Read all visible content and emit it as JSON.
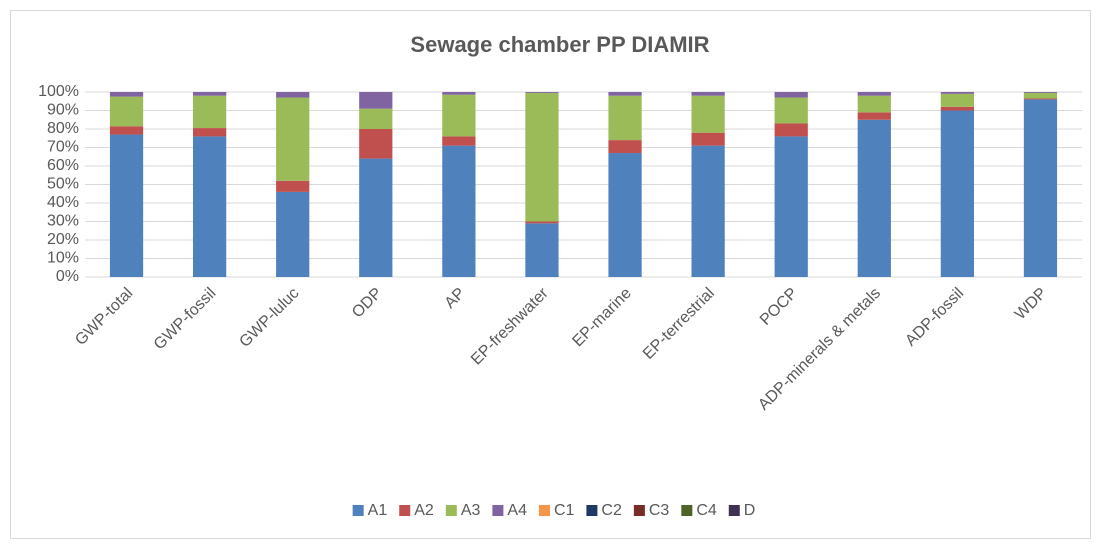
{
  "chart_data": {
    "type": "bar",
    "stacked": true,
    "title": "Sewage chamber PP DIAMIR",
    "categories": [
      "GWP-total",
      "GWP-fossil",
      "GWP-luluc",
      "ODP",
      "AP",
      "EP-freshwater",
      "EP-marine",
      "EP-terrestrial",
      "POCP",
      "ADP-minerals & metals",
      "ADP-fossil",
      "WDP"
    ],
    "series": [
      {
        "name": "A1",
        "color": "#4f81bd",
        "values": [
          77,
          76,
          46,
          64,
          71,
          29,
          67,
          71,
          76,
          85,
          90,
          96
        ]
      },
      {
        "name": "A2",
        "color": "#c0504d",
        "values": [
          4.5,
          4.5,
          6,
          16,
          5,
          1,
          7,
          7,
          7,
          4,
          2,
          0.5
        ]
      },
      {
        "name": "A3",
        "color": "#9bbb59",
        "values": [
          16,
          17.5,
          45,
          11,
          22.5,
          69.5,
          24,
          20,
          14,
          9,
          7,
          3
        ]
      },
      {
        "name": "A4",
        "color": "#8064a2",
        "values": [
          2.5,
          2,
          3,
          9,
          1.5,
          0.5,
          2,
          2,
          3,
          2,
          1,
          0.5
        ]
      },
      {
        "name": "C1",
        "color": "#f79646",
        "values": [
          0,
          0,
          0,
          0,
          0,
          0,
          0,
          0,
          0,
          0,
          0,
          0
        ]
      },
      {
        "name": "C2",
        "color": "#1f3864",
        "values": [
          0,
          0,
          0,
          0,
          0,
          0,
          0,
          0,
          0,
          0,
          0,
          0
        ]
      },
      {
        "name": "C3",
        "color": "#772c2a",
        "values": [
          0,
          0,
          0,
          0,
          0,
          0,
          0,
          0,
          0,
          0,
          0,
          0
        ]
      },
      {
        "name": "C4",
        "color": "#4f6228",
        "values": [
          0,
          0,
          0,
          0,
          0,
          0,
          0,
          0,
          0,
          0,
          0,
          0
        ]
      },
      {
        "name": "D",
        "color": "#3f3151",
        "values": [
          0,
          0,
          0,
          0,
          0,
          0,
          0,
          0,
          0,
          0,
          0,
          0
        ]
      }
    ],
    "ylim": [
      0,
      100
    ],
    "yticks": [
      {
        "value": 0,
        "label": "0%"
      },
      {
        "value": 10,
        "label": "10%"
      },
      {
        "value": 20,
        "label": "20%"
      },
      {
        "value": 30,
        "label": "30%"
      },
      {
        "value": 40,
        "label": "40%"
      },
      {
        "value": 50,
        "label": "50%"
      },
      {
        "value": 60,
        "label": "60%"
      },
      {
        "value": 70,
        "label": "70%"
      },
      {
        "value": 80,
        "label": "80%"
      },
      {
        "value": 90,
        "label": "90%"
      },
      {
        "value": 100,
        "label": "100%"
      }
    ],
    "grid": true,
    "legend": "bottom"
  }
}
